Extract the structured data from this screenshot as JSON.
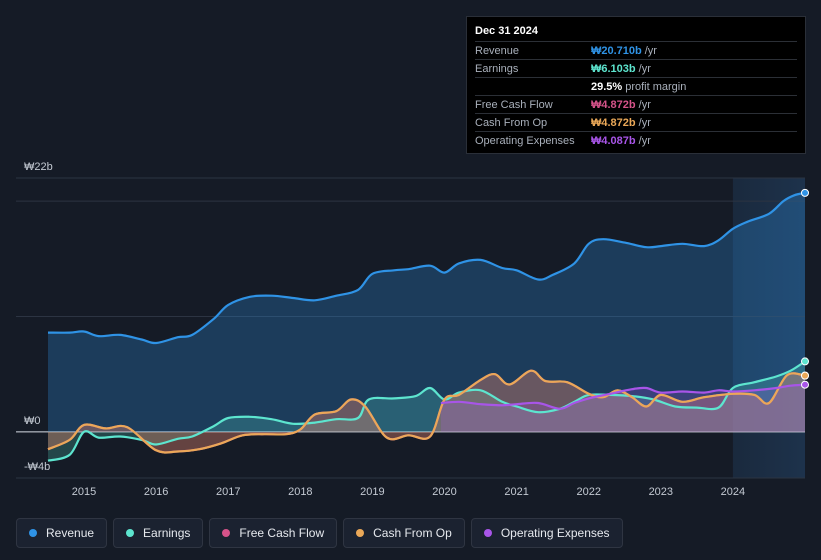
{
  "chart_data": {
    "type": "line",
    "currency": "₩",
    "y_label_top": "₩22b",
    "y_label_zero": "₩0",
    "y_label_bottom": "-₩4b",
    "ylim": [
      -4,
      22
    ],
    "xlim": [
      2014.5,
      2025.0
    ],
    "forecast_start": 2024.0,
    "x_ticks": [
      "2015",
      "2016",
      "2017",
      "2018",
      "2019",
      "2020",
      "2021",
      "2022",
      "2023",
      "2024"
    ],
    "series": [
      {
        "name": "Revenue",
        "key": "revenue",
        "color": "#2f93e6",
        "fill_from": 2014.5,
        "points": [
          [
            2014.5,
            8.6
          ],
          [
            2014.8,
            8.6
          ],
          [
            2015.0,
            8.7
          ],
          [
            2015.2,
            8.3
          ],
          [
            2015.5,
            8.4
          ],
          [
            2015.8,
            8.0
          ],
          [
            2016.0,
            7.7
          ],
          [
            2016.3,
            8.2
          ],
          [
            2016.5,
            8.4
          ],
          [
            2016.8,
            9.8
          ],
          [
            2017.0,
            11.0
          ],
          [
            2017.3,
            11.7
          ],
          [
            2017.6,
            11.8
          ],
          [
            2017.9,
            11.6
          ],
          [
            2018.2,
            11.4
          ],
          [
            2018.5,
            11.8
          ],
          [
            2018.8,
            12.3
          ],
          [
            2019.0,
            13.7
          ],
          [
            2019.3,
            14.0
          ],
          [
            2019.5,
            14.1
          ],
          [
            2019.8,
            14.4
          ],
          [
            2020.0,
            13.8
          ],
          [
            2020.2,
            14.6
          ],
          [
            2020.5,
            14.9
          ],
          [
            2020.8,
            14.2
          ],
          [
            2021.0,
            14.0
          ],
          [
            2021.3,
            13.2
          ],
          [
            2021.5,
            13.6
          ],
          [
            2021.8,
            14.6
          ],
          [
            2022.0,
            16.3
          ],
          [
            2022.2,
            16.7
          ],
          [
            2022.5,
            16.4
          ],
          [
            2022.8,
            16.0
          ],
          [
            2023.0,
            16.1
          ],
          [
            2023.3,
            16.3
          ],
          [
            2023.6,
            16.1
          ],
          [
            2023.8,
            16.6
          ],
          [
            2024.0,
            17.6
          ],
          [
            2024.2,
            18.2
          ],
          [
            2024.5,
            18.9
          ],
          [
            2024.7,
            20.0
          ],
          [
            2024.85,
            20.5
          ],
          [
            2025.0,
            20.71
          ]
        ]
      },
      {
        "name": "Earnings",
        "key": "earnings",
        "color": "#5de5cf",
        "fill_from": 2019.95,
        "points": [
          [
            2014.5,
            -2.5
          ],
          [
            2014.8,
            -2.0
          ],
          [
            2015.0,
            0.0
          ],
          [
            2015.2,
            -0.5
          ],
          [
            2015.5,
            -0.4
          ],
          [
            2015.8,
            -0.7
          ],
          [
            2016.0,
            -1.1
          ],
          [
            2016.3,
            -0.6
          ],
          [
            2016.5,
            -0.4
          ],
          [
            2016.8,
            0.5
          ],
          [
            2017.0,
            1.2
          ],
          [
            2017.3,
            1.3
          ],
          [
            2017.6,
            1.1
          ],
          [
            2017.9,
            0.7
          ],
          [
            2018.2,
            0.8
          ],
          [
            2018.5,
            1.1
          ],
          [
            2018.8,
            1.2
          ],
          [
            2018.95,
            2.8
          ],
          [
            2019.3,
            2.9
          ],
          [
            2019.6,
            3.1
          ],
          [
            2019.8,
            3.8
          ],
          [
            2020.0,
            2.8
          ],
          [
            2020.2,
            3.4
          ],
          [
            2020.5,
            3.6
          ],
          [
            2020.8,
            2.6
          ],
          [
            2021.0,
            2.2
          ],
          [
            2021.3,
            1.7
          ],
          [
            2021.6,
            2.0
          ],
          [
            2021.8,
            2.6
          ],
          [
            2022.0,
            3.2
          ],
          [
            2022.3,
            3.2
          ],
          [
            2022.6,
            3.1
          ],
          [
            2022.9,
            2.8
          ],
          [
            2023.2,
            2.2
          ],
          [
            2023.5,
            2.1
          ],
          [
            2023.8,
            2.1
          ],
          [
            2024.0,
            3.8
          ],
          [
            2024.3,
            4.3
          ],
          [
            2024.6,
            4.8
          ],
          [
            2024.8,
            5.3
          ],
          [
            2025.0,
            6.103
          ]
        ]
      },
      {
        "name": "Free Cash Flow",
        "key": "fcf",
        "color": "#d6538a",
        "fill_from": 2014.5,
        "points": [
          [
            2014.5,
            -1.5
          ],
          [
            2014.8,
            -0.7
          ],
          [
            2015.0,
            0.6
          ],
          [
            2015.3,
            0.3
          ],
          [
            2015.6,
            0.4
          ],
          [
            2016.0,
            -1.6
          ],
          [
            2016.3,
            -1.7
          ],
          [
            2016.6,
            -1.5
          ],
          [
            2016.9,
            -1.0
          ],
          [
            2017.2,
            -0.3
          ],
          [
            2017.5,
            -0.2
          ],
          [
            2017.8,
            -0.2
          ],
          [
            2018.0,
            0.2
          ],
          [
            2018.2,
            1.5
          ],
          [
            2018.5,
            1.8
          ],
          [
            2018.7,
            2.8
          ],
          [
            2018.9,
            2.2
          ],
          [
            2019.2,
            -0.5
          ],
          [
            2019.5,
            -0.3
          ],
          [
            2019.8,
            -0.4
          ],
          [
            2020.0,
            2.8
          ],
          [
            2020.2,
            3.2
          ],
          [
            2020.5,
            4.5
          ],
          [
            2020.7,
            5.0
          ],
          [
            2020.9,
            4.1
          ],
          [
            2021.2,
            5.3
          ],
          [
            2021.4,
            4.4
          ],
          [
            2021.7,
            4.3
          ],
          [
            2022.0,
            3.3
          ],
          [
            2022.2,
            3.0
          ],
          [
            2022.4,
            3.6
          ],
          [
            2022.6,
            3.0
          ],
          [
            2022.8,
            2.2
          ],
          [
            2023.0,
            3.2
          ],
          [
            2023.3,
            2.6
          ],
          [
            2023.6,
            3.0
          ],
          [
            2024.0,
            3.3
          ],
          [
            2024.3,
            3.2
          ],
          [
            2024.5,
            2.5
          ],
          [
            2024.75,
            4.9
          ],
          [
            2025.0,
            4.872
          ]
        ]
      },
      {
        "name": "Cash From Op",
        "key": "cfo",
        "color": "#eaa858",
        "fill_from": 2014.5,
        "points": [
          [
            2014.5,
            -1.5
          ],
          [
            2014.8,
            -0.7
          ],
          [
            2015.0,
            0.6
          ],
          [
            2015.3,
            0.3
          ],
          [
            2015.6,
            0.4
          ],
          [
            2016.0,
            -1.6
          ],
          [
            2016.3,
            -1.7
          ],
          [
            2016.6,
            -1.5
          ],
          [
            2016.9,
            -1.0
          ],
          [
            2017.2,
            -0.3
          ],
          [
            2017.5,
            -0.2
          ],
          [
            2017.8,
            -0.2
          ],
          [
            2018.0,
            0.2
          ],
          [
            2018.2,
            1.5
          ],
          [
            2018.5,
            1.8
          ],
          [
            2018.7,
            2.8
          ],
          [
            2018.9,
            2.2
          ],
          [
            2019.2,
            -0.5
          ],
          [
            2019.5,
            -0.3
          ],
          [
            2019.8,
            -0.4
          ],
          [
            2020.0,
            2.8
          ],
          [
            2020.2,
            3.2
          ],
          [
            2020.5,
            4.5
          ],
          [
            2020.7,
            5.0
          ],
          [
            2020.9,
            4.1
          ],
          [
            2021.2,
            5.3
          ],
          [
            2021.4,
            4.4
          ],
          [
            2021.7,
            4.3
          ],
          [
            2022.0,
            3.3
          ],
          [
            2022.2,
            3.0
          ],
          [
            2022.4,
            3.6
          ],
          [
            2022.6,
            3.0
          ],
          [
            2022.8,
            2.2
          ],
          [
            2023.0,
            3.2
          ],
          [
            2023.3,
            2.6
          ],
          [
            2023.6,
            3.0
          ],
          [
            2024.0,
            3.3
          ],
          [
            2024.3,
            3.2
          ],
          [
            2024.5,
            2.5
          ],
          [
            2024.75,
            4.9
          ],
          [
            2025.0,
            4.872
          ]
        ]
      },
      {
        "name": "Operating Expenses",
        "key": "opex",
        "color": "#a855e8",
        "fill_from": 2019.95,
        "points": [
          [
            2019.95,
            2.5
          ],
          [
            2020.2,
            2.6
          ],
          [
            2020.5,
            2.4
          ],
          [
            2020.8,
            2.3
          ],
          [
            2021.0,
            2.4
          ],
          [
            2021.3,
            2.5
          ],
          [
            2021.6,
            2.0
          ],
          [
            2021.8,
            2.5
          ],
          [
            2022.0,
            2.9
          ],
          [
            2022.3,
            3.3
          ],
          [
            2022.6,
            3.7
          ],
          [
            2022.8,
            3.8
          ],
          [
            2023.0,
            3.4
          ],
          [
            2023.3,
            3.5
          ],
          [
            2023.6,
            3.4
          ],
          [
            2023.8,
            3.6
          ],
          [
            2024.0,
            3.5
          ],
          [
            2024.3,
            3.6
          ],
          [
            2024.6,
            3.8
          ],
          [
            2024.8,
            4.0
          ],
          [
            2025.0,
            4.087
          ]
        ]
      }
    ]
  },
  "tooltip": {
    "date": "Dec 31 2024",
    "rows": [
      {
        "label": "Revenue",
        "value": "₩20.710b",
        "unit": "/yr",
        "color": "#2f93e6"
      },
      {
        "label": "Earnings",
        "value": "₩6.103b",
        "unit": "/yr",
        "color": "#5de5cf"
      },
      {
        "label": "",
        "value": "29.5%",
        "unit": "profit margin",
        "color": "#ffffff"
      },
      {
        "label": "Free Cash Flow",
        "value": "₩4.872b",
        "unit": "/yr",
        "color": "#d6538a"
      },
      {
        "label": "Cash From Op",
        "value": "₩4.872b",
        "unit": "/yr",
        "color": "#eaa858"
      },
      {
        "label": "Operating Expenses",
        "value": "₩4.087b",
        "unit": "/yr",
        "color": "#a855e8"
      }
    ]
  },
  "legend": [
    {
      "label": "Revenue",
      "color": "#2f93e6"
    },
    {
      "label": "Earnings",
      "color": "#5de5cf"
    },
    {
      "label": "Free Cash Flow",
      "color": "#d6538a"
    },
    {
      "label": "Cash From Op",
      "color": "#eaa858"
    },
    {
      "label": "Operating Expenses",
      "color": "#a855e8"
    }
  ]
}
